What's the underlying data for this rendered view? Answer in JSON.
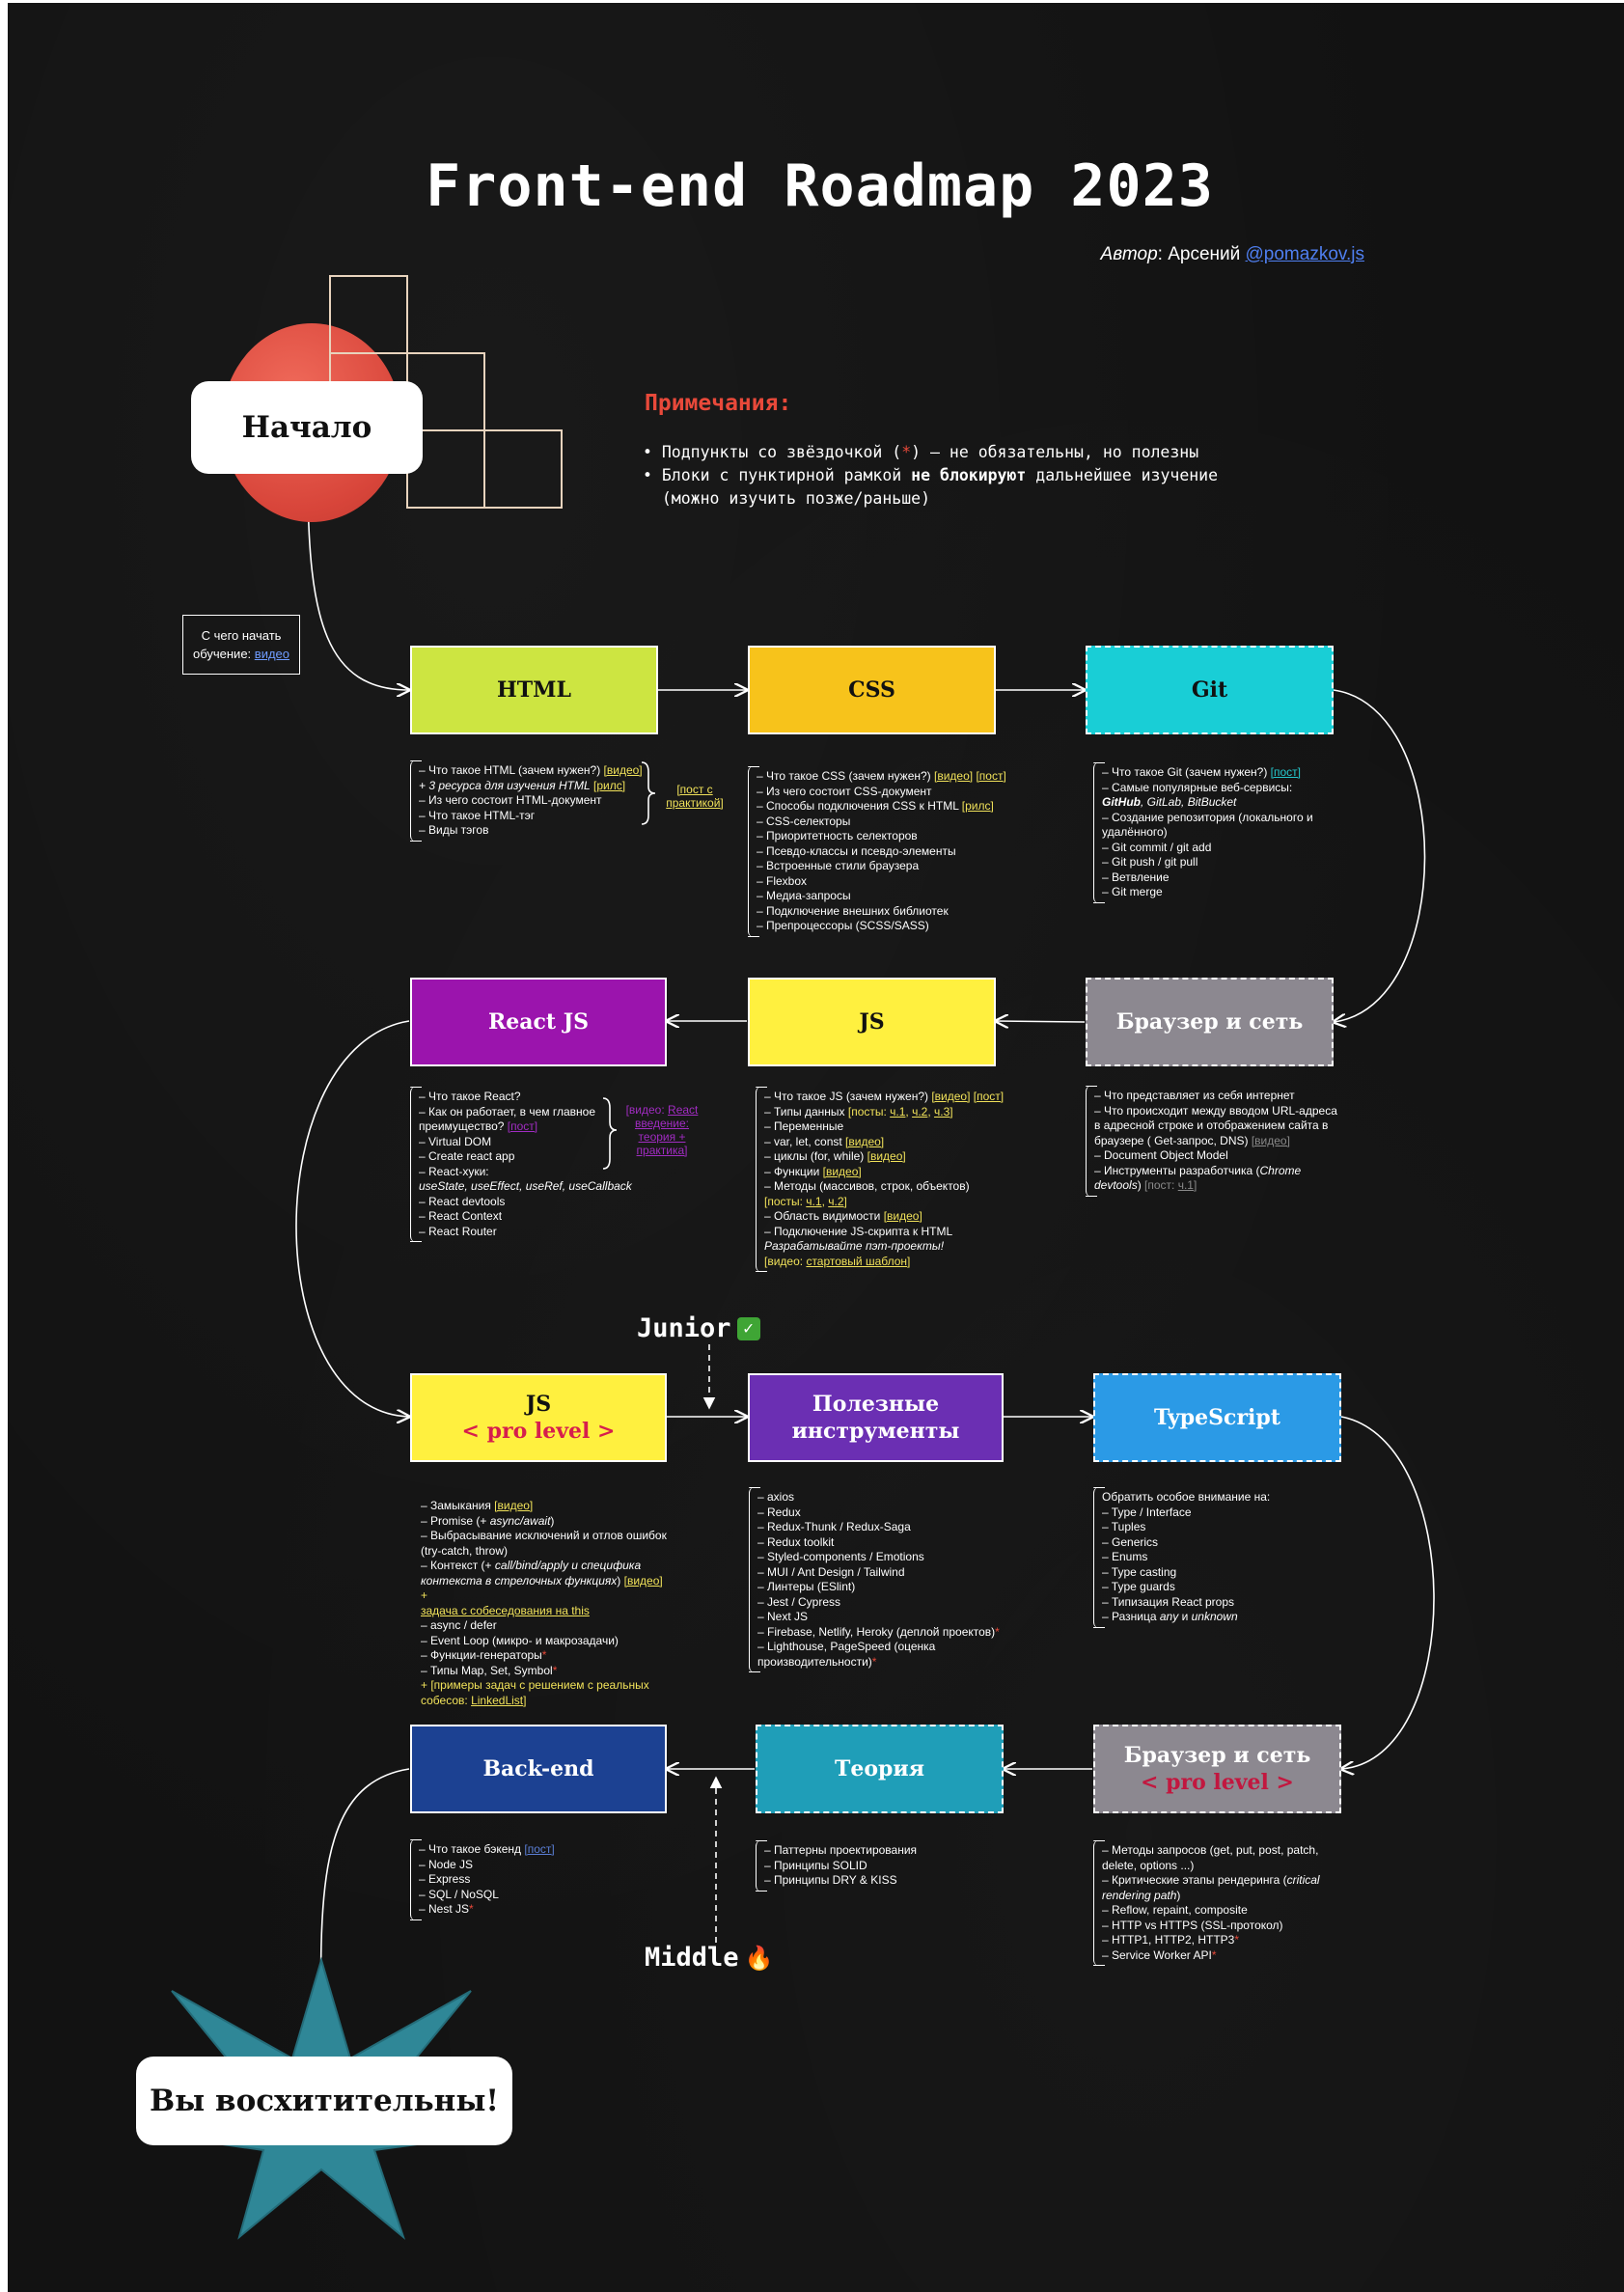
{
  "title": "Front-end Roadmap 2023",
  "author": {
    "prefix": "Автор",
    "name": ": Арсений ",
    "handle": "@pomazkov.js"
  },
  "start_label": "Начало",
  "finish_label": "Вы восхитительны!",
  "notes": {
    "title": "Примечания:",
    "line1_a": "• Подпункты со звёздочкой (",
    "line1_star": "*",
    "line1_b": ") – не обязательны, но полезны",
    "line2_a": "• Блоки с пунктирной рамкой ",
    "line2_bold": "не блокируют",
    "line2_b": " дальнейшее изучение",
    "line3": "  (можно изучить позже/раньше)"
  },
  "start_video": {
    "line1": "С чего начать",
    "line2": "обучение: ",
    "link": "видео"
  },
  "levels": {
    "junior": "Junior",
    "junior_icon": "✓",
    "middle": "Middle",
    "middle_icon": "🔥"
  },
  "colors": {
    "html": "#cde541",
    "css": "#f7c31b",
    "git": "#19ced6",
    "react": "#9b14ad",
    "js": "#fff03f",
    "browser": "#8c8890",
    "jspro": "#fff03f",
    "tools": "#6b2fb3",
    "typescript": "#2b9ae6",
    "backend": "#1c4192",
    "theory": "#1f9eb8",
    "browserpro": "#8c8890",
    "start_circle": "#dd4a3c",
    "star": "#2b7f8f",
    "accent_red": "#e8493a",
    "link_yellow": "#f1e25a"
  },
  "nodes": {
    "html": {
      "label": "HTML"
    },
    "css": {
      "label": "CSS"
    },
    "git": {
      "label": "Git"
    },
    "react": {
      "label": "React JS"
    },
    "js": {
      "label": "JS"
    },
    "browser": {
      "label": "Браузер и сеть"
    },
    "jspro": {
      "label": "JS",
      "sub": "< pro level >"
    },
    "tools": {
      "line1": "Полезные",
      "line2": "инструменты"
    },
    "typescript": {
      "label": "TypeScript"
    },
    "backend": {
      "label": "Back-end"
    },
    "theory": {
      "label": "Теория"
    },
    "browserpro": {
      "label": "Браузер и сеть",
      "sub": "< pro level >"
    }
  },
  "html_box": {
    "l1": "– Что такое HTML (зачем нужен?) ",
    "l1_link": "[видео]",
    "l2": "+ 3 ресурса для изучения HTML",
    "l2_link": "[рилс]",
    "l3": "– Из чего состоит HTML-документ",
    "l4": "– Что такое HTML-тэг",
    "l5": "– Виды тэгов",
    "brace_l1": "[пост с",
    "brace_l2": "практикой]"
  },
  "css_box": {
    "l1": "– Что такое CSS (зачем нужен?) ",
    "l1_link1": "[видео]",
    "l1_link2": "[пост]",
    "l2": "– Из чего состоит CSS-документ",
    "l3": "– Способы подключения CSS к HTML ",
    "l3_link": "[рилс]",
    "l4": "– CSS-селекторы",
    "l5": "– Приоритетность селекторов",
    "l6": "– Псевдо-классы и псевдо-элементы",
    "l7": "– Встроенные стили браузера",
    "l8": "– Flexbox",
    "l9": "– Медиа-запросы",
    "l10": "– Подключение внешних библиотек",
    "l11": "– Препроцессоры (SCSS/SASS)"
  },
  "git_box": {
    "l1": "– Что такое Git (зачем нужен?) ",
    "l1_link": "[пост]",
    "l2": "– Самые популярные веб-сервисы:",
    "l3_b": "GitHub",
    "l3": ", GitLab, BitBucket",
    "l4": "– Создание репозитория (локального и",
    "l5": "удалённого)",
    "l6": "– Git commit / git add",
    "l7": "– Git push / git pull",
    "l8": "– Ветвление",
    "l9": "– Git merge"
  },
  "react_box": {
    "l1": "– Что такое React?",
    "l2": "– Как он работает, в чем главное",
    "l3": "преимущество? ",
    "l3_link": "[пост]",
    "l4": "– Virtual DOM",
    "l5": "– Create react app",
    "l6": "– React-хуки:",
    "l7": "useState, useEffect, useRef, useCallback",
    "l8": "– React devtools",
    "l9": "– React Context",
    "l10": "– React Router",
    "brace_l1": "[видео: ",
    "brace_l1_link": "React",
    "brace_l2": "введение:",
    "brace_l3": "теория +",
    "brace_l4": "практика]"
  },
  "js_box": {
    "l1": "– Что такое JS (зачем нужен?) ",
    "l1_link1": "[видео]",
    "l1_link2": "[пост]",
    "l2": "– Типы данных ",
    "l2_y": "[посты: ",
    "l2_p1": "ч.1",
    "l2_p2": "ч.2",
    "l2_p3": "ч.3",
    "l3": "– Переменные",
    "l4": "– var, let, const ",
    "l4_link": "[видео]",
    "l5": "– циклы (for, while) ",
    "l5_link": "[видео]",
    "l6": "– Функции ",
    "l6_link": "[видео]",
    "l7": "– Методы (массивов, строк, объектов)",
    "l8_y": "[посты: ",
    "l8_p1": "ч.1",
    "l8_p2": "ч.2",
    "l9": "– Область видимости ",
    "l9_link": "[видео]",
    "l10": "– Подключение JS-скрипта к HTML",
    "l11": "Разрабатывайте пэт-проекты!",
    "l12_y": "[видео: ",
    "l12_link": "стартовый шаблон"
  },
  "browser_box": {
    "l1": "– Что представляет из себя интернет",
    "l2": "– Что происходит между вводом URL-адреса",
    "l3": "в адресной строке и отображением сайта в",
    "l4": "браузере ( Get-запрос, DNS) ",
    "l4_link": "[видео]",
    "l5": "– Document Object Model",
    "l6": "– Инструменты разработчика (",
    "l6_it": "Chrome",
    "l7_it": "devtools",
    "l7": ") ",
    "l7_g": "[пост: ",
    "l7_link": "ч.1"
  },
  "jspro_box": {
    "l1": "– Замыкания ",
    "l1_link": "[видео]",
    "l2": "– Promise (+ ",
    "l2_it": "async/await",
    "l2_b": ")",
    "l3": "– Выбрасывание исключений и отлов ошибок",
    "l4": "(try-catch, throw)",
    "l5": "– Контекст (+ ",
    "l5_it": "call/bind/apply и специфика",
    "l6_it": "контекста в стрелочных функциях",
    "l6": ") ",
    "l6_link": "[видео]",
    "l6_b": " +",
    "l7_link": "задача с собеседования на this",
    "l8": "– async / defer",
    "l9": "– Event Loop (микро- и макрозадачи)",
    "l10": "– Функции-генераторы",
    "l11": "– Типы Map, Set, Symbol",
    "l12": "+ [примеры задач с решением с реальных",
    "l13": "собесов: ",
    "l13_link": "LinkedList"
  },
  "tools_box": {
    "l1": "– axios",
    "l2": "– Redux",
    "l3": "– Redux-Thunk / Redux-Saga",
    "l4": "– Redux toolkit",
    "l5": "– Styled-components / Emotions",
    "l6": "– MUI / Ant Design / Tailwind",
    "l7": "– Линтеры (ESlint)",
    "l8": "– Jest / Cypress",
    "l9": "– Next JS",
    "l10": "– Firebase, Netlify, Heroky (деплой проектов)",
    "l11": "– Lighthouse, PageSpeed (оценка",
    "l12": "производительности)"
  },
  "ts_box": {
    "l1": "Обратить особое внимание на:",
    "l2": "– Type / Interface",
    "l3": "– Tuples",
    "l4": "– Generics",
    "l5": "– Enums",
    "l6": "– Type casting",
    "l7": "– Type guards",
    "l8": "– Типизация React props",
    "l9": "– Разница ",
    "l9_it1": "any",
    "l9_b": " и ",
    "l9_it2": "unknown"
  },
  "backend_box": {
    "l1": "– Что такое бэкенд ",
    "l1_link": "[пост]",
    "l2": "– Node JS",
    "l3": "– Express",
    "l4": "– SQL / NoSQL",
    "l5": "– Nest JS"
  },
  "theory_box": {
    "l1": "– Паттерны проектирования",
    "l2": "– Принципы SOLID",
    "l3": "– Принципы DRY & KISS"
  },
  "browserpro_box": {
    "l1": "– Методы запросов (get, put, post, patch,",
    "l2": "delete, options ...)",
    "l3": "– Критические этапы рендеринга (",
    "l3_it": "critical",
    "l4_it": "rendering path",
    "l4": ")",
    "l5": "– Reflow, repaint, composite",
    "l6": "– HTTP vs HTTPS (SSL-протокол)",
    "l7": "– HTTP1, HTTP2, HTTP3",
    "l8": "– Service Worker API"
  },
  "star_mark": "*"
}
